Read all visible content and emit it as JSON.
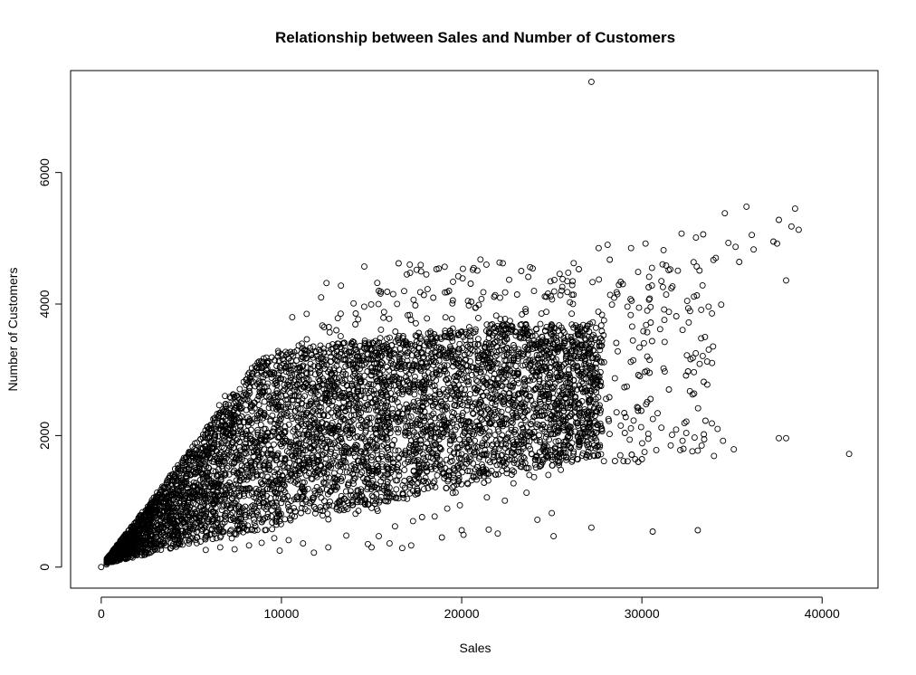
{
  "chart_data": {
    "type": "scatter",
    "title": "Relationship between Sales and Number of Customers",
    "xlabel": "Sales",
    "ylabel": "Number of Customers",
    "xlim": [
      -1700,
      43100
    ],
    "ylim": [
      -320,
      7550
    ],
    "xticks": [
      0,
      10000,
      20000,
      30000,
      40000
    ],
    "yticks": [
      0,
      2000,
      4000,
      6000
    ],
    "xtick_labels": [
      "0",
      "10000",
      "20000",
      "30000",
      "40000"
    ],
    "ytick_labels": [
      "0",
      "2000",
      "4000",
      "6000"
    ],
    "grid": false,
    "legend": "none",
    "marker": "open-circle",
    "color": "#000000",
    "points": [
      [
        0,
        0
      ],
      [
        300,
        40
      ],
      [
        600,
        90
      ],
      [
        1000,
        150
      ],
      [
        1500,
        250
      ],
      [
        2000,
        330
      ],
      [
        2500,
        420
      ],
      [
        3000,
        520
      ],
      [
        3500,
        600
      ],
      [
        4000,
        700
      ],
      [
        27200,
        7380
      ],
      [
        35800,
        5480
      ],
      [
        38500,
        5450
      ],
      [
        34600,
        5380
      ],
      [
        37600,
        5280
      ],
      [
        38700,
        5130
      ],
      [
        36100,
        5050
      ],
      [
        37300,
        4950
      ],
      [
        35200,
        4870
      ],
      [
        38300,
        5180
      ],
      [
        33400,
        5060
      ],
      [
        32200,
        5070
      ],
      [
        33000,
        5010
      ],
      [
        34800,
        4930
      ],
      [
        36200,
        4830
      ],
      [
        37500,
        4920
      ],
      [
        38000,
        4360
      ],
      [
        35400,
        4640
      ],
      [
        34100,
        4700
      ],
      [
        31200,
        4820
      ],
      [
        30200,
        4920
      ],
      [
        29400,
        4850
      ],
      [
        27600,
        4850
      ],
      [
        28100,
        4900
      ],
      [
        22100,
        4630
      ],
      [
        17500,
        4520
      ],
      [
        16500,
        4620
      ],
      [
        14600,
        4570
      ],
      [
        18600,
        4530
      ],
      [
        12500,
        4320
      ],
      [
        41500,
        1720
      ],
      [
        38000,
        1960
      ],
      [
        37600,
        1960
      ],
      [
        34500,
        1920
      ],
      [
        35100,
        1790
      ],
      [
        34200,
        2100
      ],
      [
        33100,
        1770
      ],
      [
        34000,
        1690
      ],
      [
        30800,
        1780
      ],
      [
        31600,
        1850
      ],
      [
        32800,
        1760
      ],
      [
        30000,
        1640
      ],
      [
        28800,
        1700
      ],
      [
        31900,
        2090
      ],
      [
        29800,
        1600
      ],
      [
        27200,
        600
      ],
      [
        30600,
        540
      ],
      [
        33100,
        560
      ],
      [
        25100,
        470
      ],
      [
        25000,
        820
      ],
      [
        24200,
        720
      ],
      [
        22000,
        510
      ],
      [
        21500,
        570
      ],
      [
        20100,
        490
      ],
      [
        20000,
        560
      ],
      [
        18900,
        450
      ],
      [
        17800,
        760
      ],
      [
        17200,
        330
      ],
      [
        16700,
        290
      ],
      [
        16000,
        360
      ],
      [
        15400,
        470
      ],
      [
        15000,
        300
      ],
      [
        14800,
        350
      ],
      [
        13600,
        480
      ],
      [
        12600,
        300
      ],
      [
        11800,
        220
      ],
      [
        11200,
        360
      ],
      [
        9900,
        250
      ],
      [
        10400,
        410
      ],
      [
        9600,
        440
      ],
      [
        8900,
        370
      ],
      [
        8200,
        330
      ],
      [
        7400,
        270
      ],
      [
        6600,
        300
      ],
      [
        5800,
        260
      ],
      [
        10600,
        3800
      ],
      [
        11400,
        3850
      ],
      [
        12200,
        4100
      ],
      [
        13300,
        4280
      ],
      [
        14000,
        4010
      ],
      [
        15400,
        4200
      ],
      [
        16200,
        4150
      ],
      [
        17700,
        4180
      ],
      [
        19300,
        4200
      ],
      [
        20500,
        4310
      ],
      [
        21200,
        4180
      ],
      [
        21800,
        4110
      ],
      [
        23800,
        4560
      ],
      [
        25600,
        4380
      ],
      [
        26500,
        4530
      ],
      [
        24700,
        4110
      ],
      [
        28600,
        4180
      ],
      [
        29200,
        3960
      ],
      [
        30300,
        3900
      ],
      [
        31500,
        3880
      ],
      [
        32600,
        3720
      ],
      [
        33700,
        3960
      ],
      [
        34400,
        3990
      ],
      [
        33500,
        3500
      ],
      [
        32500,
        3220
      ],
      [
        31200,
        3020
      ],
      [
        29800,
        2920
      ],
      [
        28500,
        2870
      ],
      [
        27400,
        2780
      ],
      [
        32900,
        2640
      ],
      [
        31500,
        2700
      ],
      [
        30300,
        2510
      ],
      [
        29100,
        2280
      ],
      [
        26700,
        2030
      ],
      [
        25700,
        1850
      ],
      [
        24100,
        1630
      ],
      [
        22900,
        1450
      ],
      [
        23600,
        1130
      ],
      [
        22400,
        1010
      ],
      [
        21400,
        1060
      ],
      [
        19900,
        940
      ],
      [
        19200,
        890
      ],
      [
        18500,
        770
      ],
      [
        17300,
        700
      ],
      [
        16300,
        620
      ]
    ]
  }
}
